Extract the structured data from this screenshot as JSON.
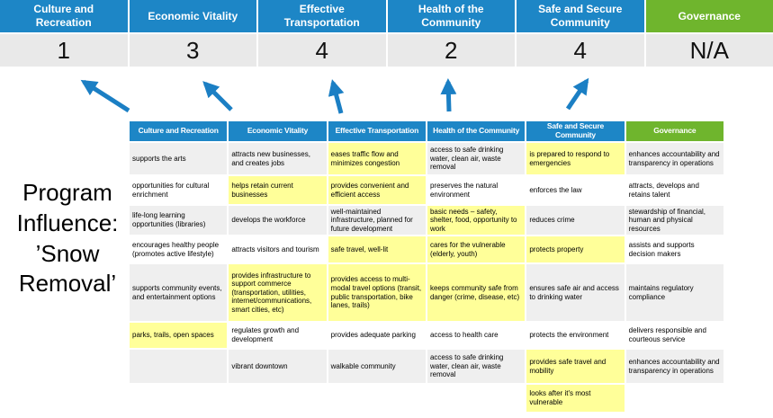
{
  "program_label": "Program Influence: ’Snow Removal’",
  "summary": {
    "columns": [
      {
        "label": "Culture and Recreation",
        "score": "1",
        "theme": "blue"
      },
      {
        "label": "Economic Vitality",
        "score": "3",
        "theme": "blue"
      },
      {
        "label": "Effective Transportation",
        "score": "4",
        "theme": "blue"
      },
      {
        "label": "Health of the Community",
        "score": "2",
        "theme": "blue"
      },
      {
        "label": "Safe and Secure Community",
        "score": "4",
        "theme": "blue"
      },
      {
        "label": "Governance",
        "score": "N/A",
        "theme": "green"
      }
    ]
  },
  "matrix": {
    "headers": [
      {
        "label": "Culture and Recreation",
        "theme": "blue"
      },
      {
        "label": "Economic Vitality",
        "theme": "blue"
      },
      {
        "label": "Effective Transportation",
        "theme": "blue"
      },
      {
        "label": "Health of the Community",
        "theme": "blue"
      },
      {
        "label": "Safe and Secure Community",
        "theme": "blue"
      },
      {
        "label": "Governance",
        "theme": "green"
      }
    ],
    "rows": [
      [
        {
          "text": "supports the arts",
          "highlight": false
        },
        {
          "text": "attracts new businesses, and creates jobs",
          "highlight": false
        },
        {
          "text": "eases traffic flow and minimizes congestion",
          "highlight": true
        },
        {
          "text": "access to safe drinking water, clean air, waste removal",
          "highlight": false
        },
        {
          "text": "is prepared to respond to emergencies",
          "highlight": true
        },
        {
          "text": "enhances accountability and transparency in operations",
          "highlight": false
        }
      ],
      [
        {
          "text": "opportunities for cultural enrichment",
          "highlight": false
        },
        {
          "text": "helps retain current businesses",
          "highlight": true
        },
        {
          "text": "provides convenient and efficient access",
          "highlight": true
        },
        {
          "text": "preserves the natural environment",
          "highlight": false
        },
        {
          "text": "enforces the law",
          "highlight": false
        },
        {
          "text": "attracts, develops and retains talent",
          "highlight": false
        }
      ],
      [
        {
          "text": "life-long learning opportunities (libraries)",
          "highlight": false
        },
        {
          "text": "develops the workforce",
          "highlight": false
        },
        {
          "text": "well-maintained infrastructure, planned for future development",
          "highlight": false
        },
        {
          "text": "basic needs – safety, shelter, food, opportunity to work",
          "highlight": true
        },
        {
          "text": "reduces crime",
          "highlight": false
        },
        {
          "text": "stewardship of financial, human and physical resources",
          "highlight": false
        }
      ],
      [
        {
          "text": "encourages healthy people (promotes active lifestyle)",
          "highlight": false
        },
        {
          "text": "attracts visitors and tourism",
          "highlight": false
        },
        {
          "text": "safe travel, well-lit",
          "highlight": true
        },
        {
          "text": "cares for the vulnerable (elderly, youth)",
          "highlight": true
        },
        {
          "text": "protects property",
          "highlight": true
        },
        {
          "text": "assists and supports decision makers",
          "highlight": false
        }
      ],
      [
        {
          "text": "supports community events, and entertainment options",
          "highlight": false
        },
        {
          "text": "provides infrastructure to support commerce (transportation, utilities, internet/communications, smart cities, etc)",
          "highlight": true
        },
        {
          "text": "provides access to multi-modal travel options (transit, public transportation, bike lanes, trails)",
          "highlight": true
        },
        {
          "text": "keeps community safe from danger (crime, disease, etc)",
          "highlight": true
        },
        {
          "text": "ensures safe air and access to drinking water",
          "highlight": false
        },
        {
          "text": "maintains regulatory compliance",
          "highlight": false
        }
      ],
      [
        {
          "text": "parks, trails, open spaces",
          "highlight": true
        },
        {
          "text": "regulates growth and development",
          "highlight": false
        },
        {
          "text": "provides adequate parking",
          "highlight": false
        },
        {
          "text": "access to health care",
          "highlight": false
        },
        {
          "text": "protects the environment",
          "highlight": false
        },
        {
          "text": "delivers responsible and courteous service",
          "highlight": false
        }
      ],
      [
        {
          "text": "",
          "highlight": false
        },
        {
          "text": "vibrant downtown",
          "highlight": false
        },
        {
          "text": "walkable community",
          "highlight": false
        },
        {
          "text": "access to safe drinking water, clean air, waste removal",
          "highlight": false
        },
        {
          "text": "provides safe travel and mobility",
          "highlight": true
        },
        {
          "text": "enhances accountability and transparency in operations",
          "highlight": false
        }
      ],
      [
        {
          "text": "",
          "highlight": false
        },
        {
          "text": "",
          "highlight": false
        },
        {
          "text": "",
          "highlight": false
        },
        {
          "text": "",
          "highlight": false
        },
        {
          "text": "looks after it's most vulnerable",
          "highlight": true
        },
        {
          "text": "",
          "highlight": false
        }
      ]
    ]
  },
  "colors": {
    "header_blue": "#1d86c6",
    "header_green": "#6fb52d",
    "highlight_yellow": "#ffff99",
    "band_gray": "#efefef",
    "score_gray": "#e9e9e9",
    "arrow_blue": "#1b7fc4"
  }
}
